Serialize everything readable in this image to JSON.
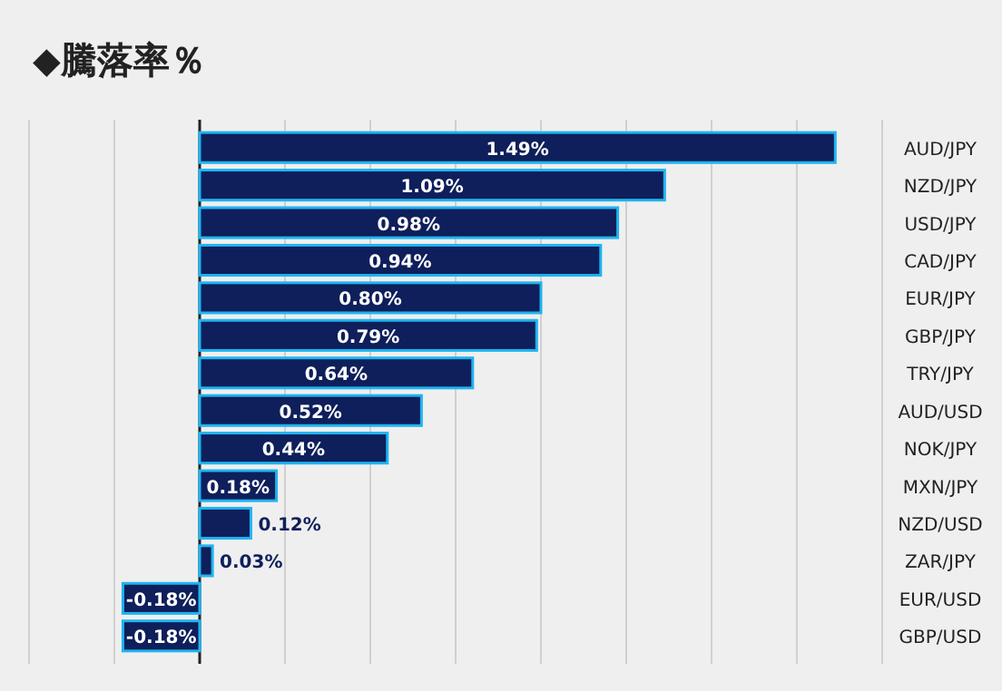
{
  "chart_data": {
    "type": "bar",
    "orientation": "horizontal",
    "title": "◆騰落率％",
    "categories": [
      "AUD/JPY",
      "NZD/JPY",
      "USD/JPY",
      "CAD/JPY",
      "EUR/JPY",
      "GBP/JPY",
      "TRY/JPY",
      "AUD/USD",
      "NOK/JPY",
      "MXN/JPY",
      "NZD/USD",
      "ZAR/JPY",
      "EUR/USD",
      "GBP/USD"
    ],
    "values": [
      1.49,
      1.09,
      0.98,
      0.94,
      0.8,
      0.79,
      0.64,
      0.52,
      0.44,
      0.18,
      0.12,
      0.03,
      -0.18,
      -0.18
    ],
    "value_labels": [
      "1.49%",
      "1.09%",
      "0.98%",
      "0.94%",
      "0.80%",
      "0.79%",
      "0.64%",
      "0.52%",
      "0.44%",
      "0.18%",
      "0.12%",
      "0.03%",
      "-0.18%",
      "-0.18%"
    ],
    "color": "#0e1f5b",
    "xlim": [
      -0.4,
      1.6
    ],
    "xticks": [
      {
        "value": -0.4,
        "label": null
      },
      {
        "value": -0.2,
        "label": null
      },
      {
        "value": 0,
        "label": null
      },
      {
        "value": 0.2,
        "label": null
      },
      {
        "value": 0.4,
        "label": null
      },
      {
        "value": 0.6,
        "label": null
      },
      {
        "value": 0.8,
        "label": null
      },
      {
        "value": 1.0,
        "label": null
      },
      {
        "value": 1.2,
        "label": null
      },
      {
        "value": 1.4,
        "label": null
      },
      {
        "value": 1.6,
        "label": null
      }
    ],
    "grid": "x",
    "tick_labels": "y"
  }
}
